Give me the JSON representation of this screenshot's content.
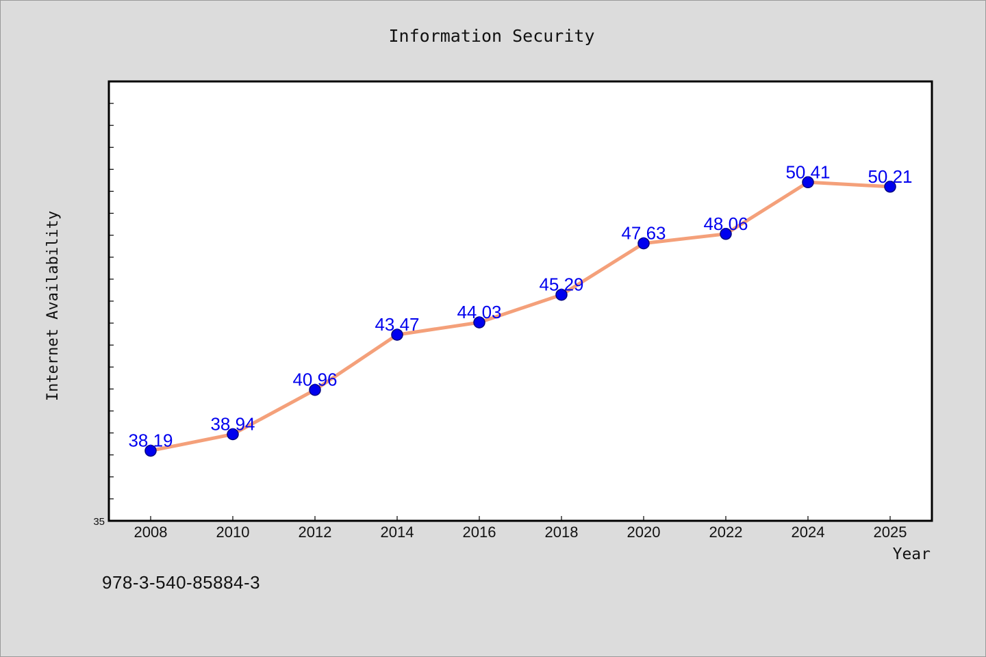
{
  "chart_data": {
    "type": "line",
    "title": "Information Security",
    "xlabel": "Year",
    "ylabel": "Internet Availability",
    "categories": [
      "2008",
      "2010",
      "2012",
      "2014",
      "2016",
      "2018",
      "2020",
      "2022",
      "2024",
      "2025"
    ],
    "series": [
      {
        "values": [
          38.19,
          38.94,
          40.96,
          43.47,
          44.03,
          45.29,
          47.63,
          48.06,
          50.41,
          50.21
        ]
      }
    ],
    "data_labels": [
      "38.19",
      "38.94",
      "40.96",
      "43.47",
      "44.03",
      "45.29",
      "47.63",
      "48.06",
      "50.41",
      "50.21"
    ],
    "y_tick_labels": [
      "35"
    ],
    "ylim": [
      35,
      55
    ],
    "grid": false,
    "colors": {
      "line": "#f4a07a",
      "marker": "#0000ee",
      "marker_edge": "#000080",
      "data_label": "#0000ee",
      "plot_bg": "#ffffff",
      "page_bg": "#dcdcdc"
    }
  },
  "footnote": "978-3-540-85884-3"
}
